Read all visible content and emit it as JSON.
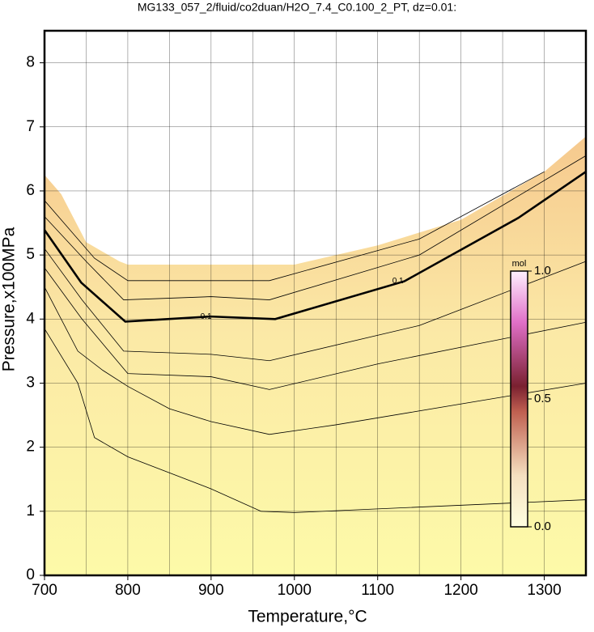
{
  "chart_data": {
    "type": "contour",
    "title": "MG133_057_2/fluid/co2duan/H2O_7.4_C0.100_2_PT, dz=0.01:",
    "x_label": "Temperature,°C",
    "y_label": "Pressure,x100MPa",
    "xlim": [
      700,
      1350
    ],
    "ylim": [
      0,
      8.5
    ],
    "xticks": [
      700,
      800,
      900,
      1000,
      1100,
      1200,
      1300
    ],
    "yticks": [
      0,
      1,
      2,
      3,
      4,
      5,
      6,
      7,
      8
    ],
    "xgrid": [
      750,
      800,
      850,
      900,
      950,
      1000,
      1050,
      1100,
      1150,
      1200,
      1250,
      1300
    ],
    "grid": true,
    "surface_boundary": {
      "x": [
        700,
        720,
        750,
        790,
        800,
        1000,
        1100,
        1200,
        1300,
        1350
      ],
      "values": [
        6.25,
        5.95,
        5.2,
        4.9,
        4.85,
        4.85,
        5.15,
        5.55,
        6.3,
        6.85
      ]
    },
    "series": [
      {
        "label": "0.1",
        "color": "#000000",
        "x": [
          700,
          744,
          797,
          899,
          977,
          1132,
          1269,
          1350
        ],
        "values": [
          5.39,
          4.57,
          3.96,
          4.04,
          4.0,
          4.59,
          5.58,
          6.3
        ]
      },
      {
        "color": "#000000",
        "x": [
          700,
          740,
          760,
          800,
          900,
          960,
          1000,
          1350
        ],
        "values": [
          3.85,
          3.0,
          2.15,
          1.85,
          1.35,
          1.0,
          0.98,
          1.18
        ]
      },
      {
        "color": "#000000",
        "x": [
          700,
          740,
          770,
          800,
          850,
          900,
          970,
          1050,
          1350
        ],
        "values": [
          4.5,
          3.5,
          3.2,
          2.95,
          2.6,
          2.4,
          2.2,
          2.35,
          3.0
        ]
      },
      {
        "color": "#000000",
        "x": [
          700,
          745,
          800,
          900,
          970,
          1100,
          1350
        ],
        "values": [
          4.8,
          4.0,
          3.15,
          3.1,
          2.9,
          3.3,
          3.95
        ]
      },
      {
        "color": "#000000",
        "x": [
          700,
          745,
          795,
          900,
          970,
          1150,
          1350
        ],
        "values": [
          5.1,
          4.3,
          3.5,
          3.45,
          3.35,
          3.9,
          4.9
        ]
      },
      {
        "color": "#000000",
        "x": [
          700,
          750,
          795,
          900,
          970,
          1150,
          1350
        ],
        "values": [
          5.6,
          4.9,
          4.3,
          4.35,
          4.3,
          5.0,
          6.55
        ]
      },
      {
        "color": "#000000",
        "x": [
          700,
          760,
          800,
          970,
          1150,
          1300
        ],
        "values": [
          5.85,
          4.95,
          4.6,
          4.6,
          5.25,
          6.3
        ]
      }
    ],
    "colorbar": {
      "label": "mol",
      "lim": [
        0,
        1
      ],
      "ticks": [
        {
          "value": 0,
          "label": "0.0"
        },
        {
          "value": 0.5,
          "label": "0.5"
        },
        {
          "value": 1,
          "label": "1.0"
        }
      ]
    }
  }
}
